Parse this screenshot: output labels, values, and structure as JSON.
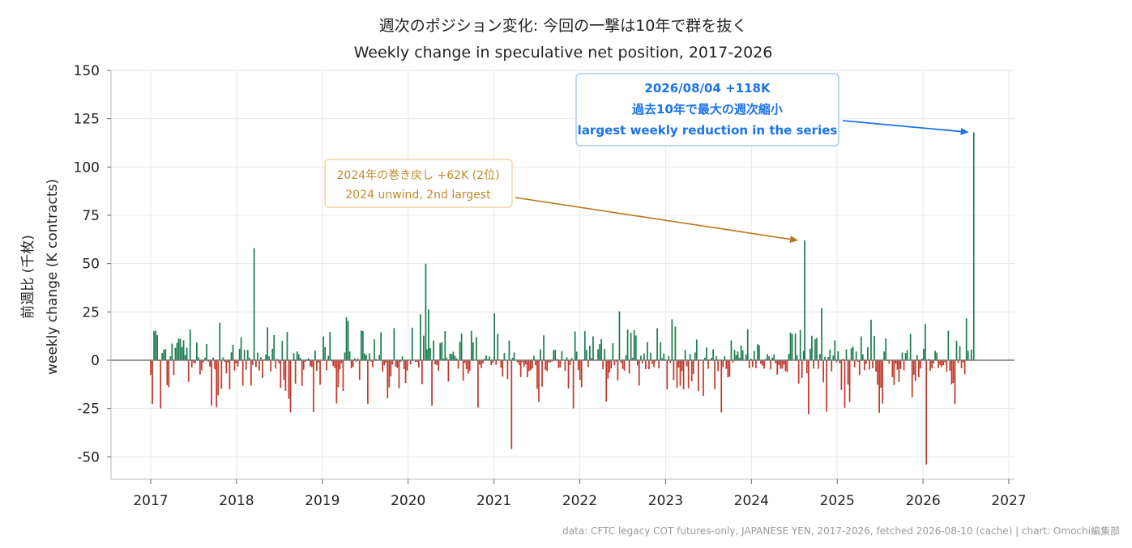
{
  "chart_data": {
    "type": "bar",
    "title": "週次のポジション変化: 今回の一撃は10年で群を抜く",
    "subtitle": "Weekly change in speculative net position, 2017-2026",
    "ylabel_ja": "前週比 (千枚)",
    "ylabel_en": "weekly change (K contracts)",
    "x_ticks": [
      "2017",
      "2018",
      "2019",
      "2020",
      "2021",
      "2022",
      "2023",
      "2024",
      "2025",
      "2026",
      "2027"
    ],
    "y_ticks": [
      "150",
      "125",
      "100",
      "75",
      "50",
      "25",
      "0",
      "-25",
      "-50"
    ],
    "xlim": [
      2016.55,
      2027.08
    ],
    "ylim": [
      -62,
      150
    ],
    "grid": true,
    "colors": {
      "positive": "#1e7d4f",
      "negative": "#c0392b",
      "zero_line": "#777777"
    },
    "notable_values": [
      {
        "date": "2018-03",
        "value": 58
      },
      {
        "date": "2020-03",
        "value": 50
      },
      {
        "date": "2021-03",
        "value": -46
      },
      {
        "date": "2024-08",
        "value": 62
      },
      {
        "date": "2026-01",
        "value": -54
      },
      {
        "date": "2026-08-04",
        "value": 118
      }
    ],
    "annotations": [
      {
        "lines": [
          "2024年の巻き戻し +62K (2位)",
          "2024 unwind, 2nd largest"
        ],
        "target_date": "2024-08",
        "target_value": 62
      },
      {
        "lines": [
          "2026/08/04  +118K",
          "過去10年で最大の週次縮小",
          "largest weekly reduction in the series"
        ],
        "target_date": "2026-08-04",
        "target_value": 118
      }
    ],
    "source": "data: CFTC legacy COT futures-only, JAPANESE YEN, 2017-2026, fetched 2026-08-10 (cache) | chart: Omochi編集部"
  }
}
